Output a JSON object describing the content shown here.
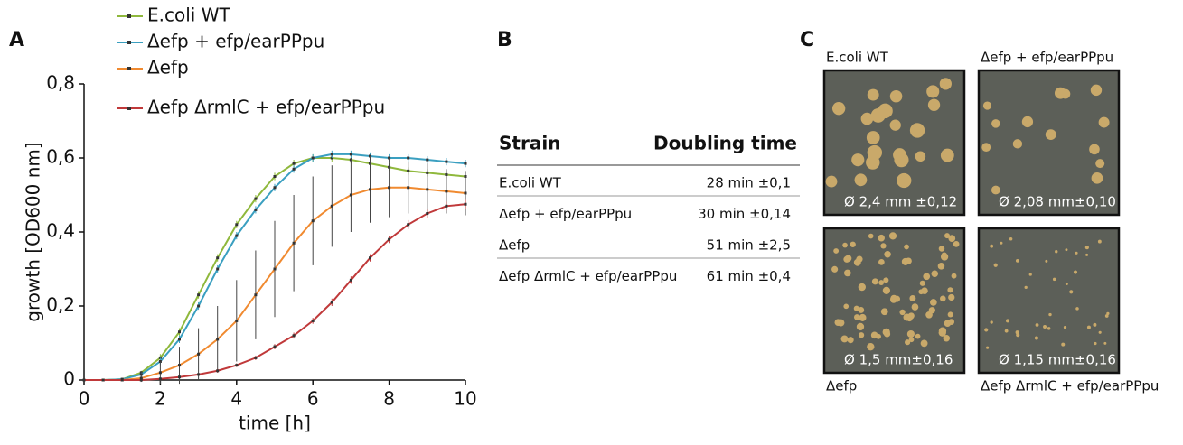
{
  "chart_data": {
    "type": "line",
    "panel": "A",
    "xlabel": "time [h]",
    "ylabel": "growth [OD600 nm]",
    "x": [
      0,
      0.5,
      1,
      1.5,
      2,
      2.5,
      3,
      3.5,
      4,
      4.5,
      5,
      5.5,
      6,
      6.5,
      7,
      7.5,
      8,
      8.5,
      9,
      9.5,
      10
    ],
    "xlim": [
      0,
      10
    ],
    "xticks": [
      0,
      2,
      4,
      6,
      8,
      10
    ],
    "ylim": [
      0,
      0.8
    ],
    "yticks": [
      0,
      {
        "value": 0.2,
        "label": "0,2"
      },
      {
        "value": 0.4,
        "label": "0,4"
      },
      {
        "value": 0.6,
        "label": "0,6"
      },
      {
        "value": 0.8,
        "label": "0,8"
      }
    ],
    "series": [
      {
        "name": "E.coli WT",
        "color": "#8fb83c",
        "values": [
          0,
          0,
          0.002,
          0.02,
          0.06,
          0.13,
          0.23,
          0.33,
          0.42,
          0.49,
          0.55,
          0.585,
          0.6,
          0.6,
          0.595,
          0.585,
          0.575,
          0.565,
          0.56,
          0.555,
          0.55
        ],
        "errors": [
          0,
          0,
          0.002,
          0.005,
          0.01,
          0.01,
          0.01,
          0.01,
          0.01,
          0.01,
          0.01,
          0.01,
          0.01,
          0.01,
          0.01,
          0.01,
          0.01,
          0.01,
          0.01,
          0.01,
          0.01
        ]
      },
      {
        "name": "Δefp + efp/earPPpu",
        "color": "#3a9fc0",
        "values": [
          0,
          0,
          0.002,
          0.015,
          0.05,
          0.11,
          0.2,
          0.3,
          0.39,
          0.46,
          0.52,
          0.57,
          0.6,
          0.61,
          0.61,
          0.605,
          0.6,
          0.6,
          0.595,
          0.59,
          0.585
        ],
        "errors": [
          0,
          0,
          0.002,
          0.005,
          0.01,
          0.01,
          0.01,
          0.01,
          0.01,
          0.01,
          0.01,
          0.01,
          0.01,
          0.01,
          0.01,
          0.01,
          0.01,
          0.01,
          0.01,
          0.01,
          0.01
        ]
      },
      {
        "name": "Δefp",
        "color": "#f08a30",
        "values": [
          0,
          0,
          0,
          0.005,
          0.02,
          0.04,
          0.07,
          0.11,
          0.16,
          0.23,
          0.3,
          0.37,
          0.43,
          0.47,
          0.5,
          0.515,
          0.52,
          0.52,
          0.515,
          0.51,
          0.505
        ],
        "errors": [
          0,
          0,
          0,
          0.01,
          0.03,
          0.05,
          0.07,
          0.09,
          0.11,
          0.12,
          0.13,
          0.13,
          0.12,
          0.11,
          0.1,
          0.09,
          0.08,
          0.07,
          0.07,
          0.06,
          0.06
        ]
      },
      {
        "name": "Δefp ΔrmlC + efp/earPPpu",
        "color": "#c0393a",
        "values": [
          0,
          0,
          0,
          0,
          0.003,
          0.008,
          0.015,
          0.025,
          0.04,
          0.06,
          0.09,
          0.12,
          0.16,
          0.21,
          0.27,
          0.33,
          0.38,
          0.42,
          0.45,
          0.47,
          0.475
        ],
        "errors": [
          0,
          0,
          0,
          0,
          0.002,
          0.003,
          0.004,
          0.005,
          0.005,
          0.006,
          0.007,
          0.008,
          0.008,
          0.01,
          0.01,
          0.01,
          0.01,
          0.012,
          0.012,
          0.012,
          0.012
        ]
      }
    ]
  },
  "table": {
    "panel": "B",
    "header": [
      "Strain",
      "Doubling time"
    ],
    "rows": [
      [
        "E.coli WT",
        "28 min ±0,1"
      ],
      [
        "Δefp + efp/earPPpu",
        "30 min ±0,14"
      ],
      [
        "Δefp",
        "51 min ±2,5"
      ],
      [
        "Δefp ΔrmlC + efp/earPPpu",
        "61 min ±0,4"
      ]
    ]
  },
  "plates": {
    "panel": "C",
    "items": [
      {
        "label": "E.coli WT",
        "diameter": "Ø 2,4 mm ±0,12"
      },
      {
        "label": "Δefp + efp/earPPpu",
        "diameter": "Ø 2,08 mm±0,10"
      },
      {
        "label": "Δefp",
        "diameter": "Ø 1,5 mm±0,16"
      },
      {
        "label": "Δefp ΔrmlC + efp/earPPpu",
        "diameter": "Ø 1,15 mm±0,16"
      }
    ]
  }
}
